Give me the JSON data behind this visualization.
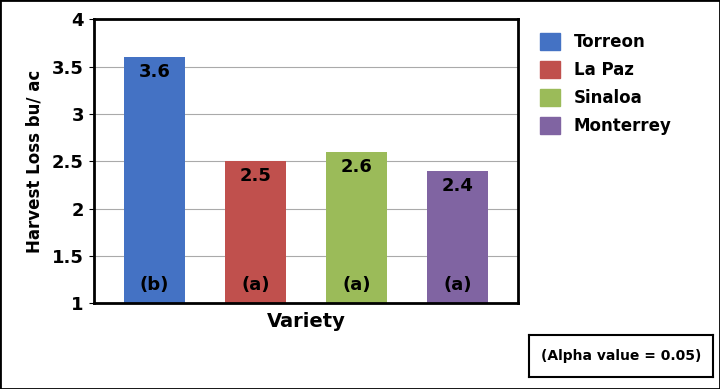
{
  "varieties": [
    "Torreon",
    "La Paz",
    "Sinaloa",
    "Monterrey"
  ],
  "values": [
    3.6,
    2.5,
    2.6,
    2.4
  ],
  "letters": [
    "(b)",
    "(a)",
    "(a)",
    "(a)"
  ],
  "bar_colors": [
    "#4472C4",
    "#C0504D",
    "#9BBB59",
    "#8064A2"
  ],
  "ylabel": "Harvest Loss bu/ ac",
  "xlabel": "Variety",
  "ylim": [
    1,
    4
  ],
  "yticks": [
    1,
    1.5,
    2,
    2.5,
    3,
    3.5,
    4
  ],
  "alpha_note": "(Alpha value = 0.05)",
  "legend_labels": [
    "Torreon",
    "La Paz",
    "Sinaloa",
    "Monterrey"
  ],
  "background_color": "#ffffff",
  "value_fontsize": 13,
  "letter_fontsize": 13,
  "bar_width": 0.6,
  "bar_bottom": 1.0
}
